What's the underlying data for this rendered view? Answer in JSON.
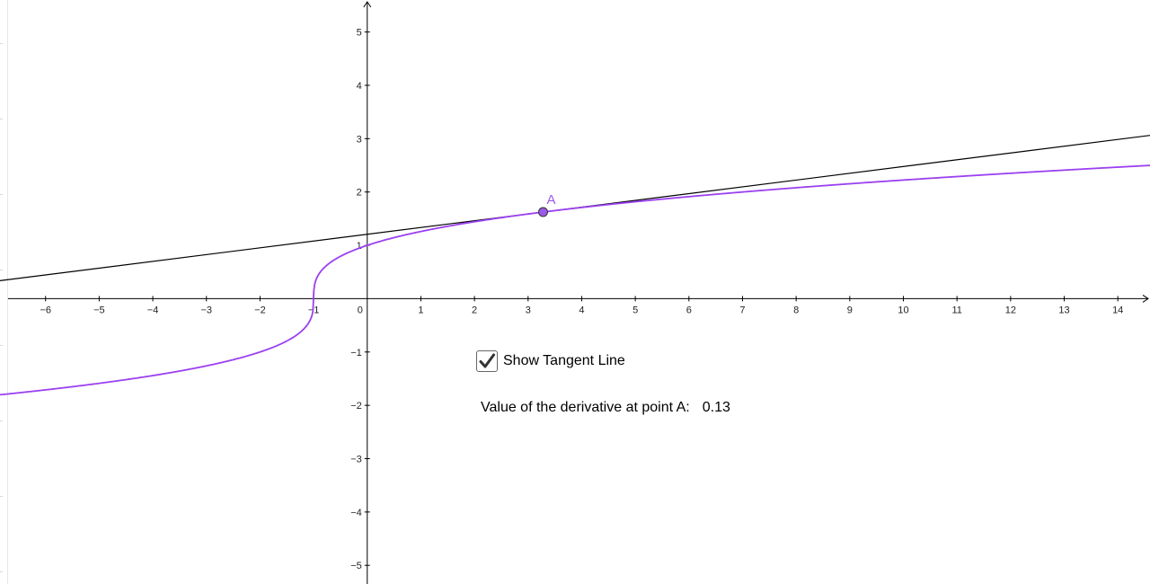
{
  "graph": {
    "x_ticks": [
      "−6",
      "−5",
      "−4",
      "−3",
      "−2",
      "−1",
      "1",
      "2",
      "3",
      "4",
      "5",
      "6",
      "7",
      "8",
      "9",
      "10",
      "11",
      "12",
      "13",
      "14"
    ],
    "x_tick_values": [
      -6,
      -5,
      -4,
      -3,
      -2,
      -1,
      1,
      2,
      3,
      4,
      5,
      6,
      7,
      8,
      9,
      10,
      11,
      12,
      13,
      14
    ],
    "y_ticks": [
      "5",
      "4",
      "3",
      "2",
      "1",
      "−1",
      "−2",
      "−3",
      "−4",
      "−5"
    ],
    "y_tick_values": [
      5,
      4,
      3,
      2,
      1,
      -1,
      -2,
      -3,
      -4,
      -5
    ],
    "origin_label": "0",
    "x_range": [
      -6.85,
      14.6
    ],
    "y_range": [
      -5.35,
      5.6
    ],
    "function": "cbrt(x+1)",
    "curve_color": "#9b40f0",
    "tangent_color": "#000000",
    "point": {
      "label": "A",
      "x": 3.28,
      "y": 1.624,
      "color": "#9b59e8"
    },
    "tangent_slope": 0.127
  },
  "controls": {
    "show_tangent_label": "Show Tangent Line",
    "show_tangent_checked": true,
    "derivative_label": "Value of the derivative at point A:",
    "derivative_value": "0.13"
  }
}
